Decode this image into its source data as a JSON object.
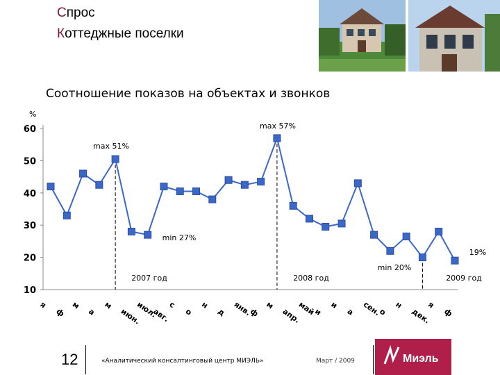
{
  "header": {
    "title_line1_first": "С",
    "title_line1_rest": "прос",
    "title_line2_first": "К",
    "title_line2_rest": "оттеджные поселки"
  },
  "footer": {
    "page_number": "12",
    "center_text": "«Аналитический консалтинговый центр МИЭЛЬ»",
    "date_text": "Март / 2009",
    "logo_text": "Миэль"
  },
  "colors": {
    "series": "#3b67c9",
    "marker": "#3b67c9",
    "title_accent": "#7a1a3a",
    "logo_bg": "#b01e4a"
  },
  "chart_data": {
    "type": "line",
    "title": "Соотношение показов на объектах и звонков",
    "ylabel": "%",
    "ylim": [
      10,
      60
    ],
    "yticks": [
      10,
      20,
      30,
      40,
      50,
      60
    ],
    "grid": false,
    "legend": "none",
    "x": [
      "я",
      "ф",
      "м",
      "а",
      "м",
      "июн.",
      "июл.",
      "авг.",
      "с",
      "о",
      "н",
      "д",
      "янв.",
      "ф",
      "м",
      "апр.",
      "май",
      "и",
      "и",
      "а",
      "сен.",
      "о",
      "н",
      "дек.",
      "я",
      "ф"
    ],
    "x_labels": [
      "янв.",
      "фев.",
      "мар.",
      "апр.",
      "май",
      "июн.",
      "июл.",
      "авг.",
      "сен.",
      "окт.",
      "ноя.",
      "дек.",
      "янв.",
      "фев.",
      "мар.",
      "апр.",
      "май",
      "июн.",
      "июл.",
      "авг.",
      "сен.",
      "окт.",
      "ноя.",
      "дек.",
      "янв.",
      "фев."
    ],
    "series": [
      {
        "values": [
          42,
          33,
          46,
          42.5,
          50.5,
          28,
          27,
          42,
          40.5,
          40.5,
          38,
          44,
          42.5,
          43.5,
          57,
          36,
          32,
          29.5,
          30.5,
          43,
          27,
          22,
          26.5,
          20,
          28,
          19
        ]
      }
    ],
    "annotations": [
      {
        "text": "max 51%",
        "index": 4
      },
      {
        "text": "min 27%",
        "index": 6
      },
      {
        "text": "max 57%",
        "index": 14
      },
      {
        "text": "min 20%",
        "index": 23
      },
      {
        "text": "19%",
        "index": 25
      }
    ],
    "year_labels": [
      {
        "text": "2007 год",
        "divider_index": 4
      },
      {
        "text": "2008 год",
        "divider_index": 14
      },
      {
        "text": "2009 год",
        "divider_index": 23
      }
    ]
  }
}
